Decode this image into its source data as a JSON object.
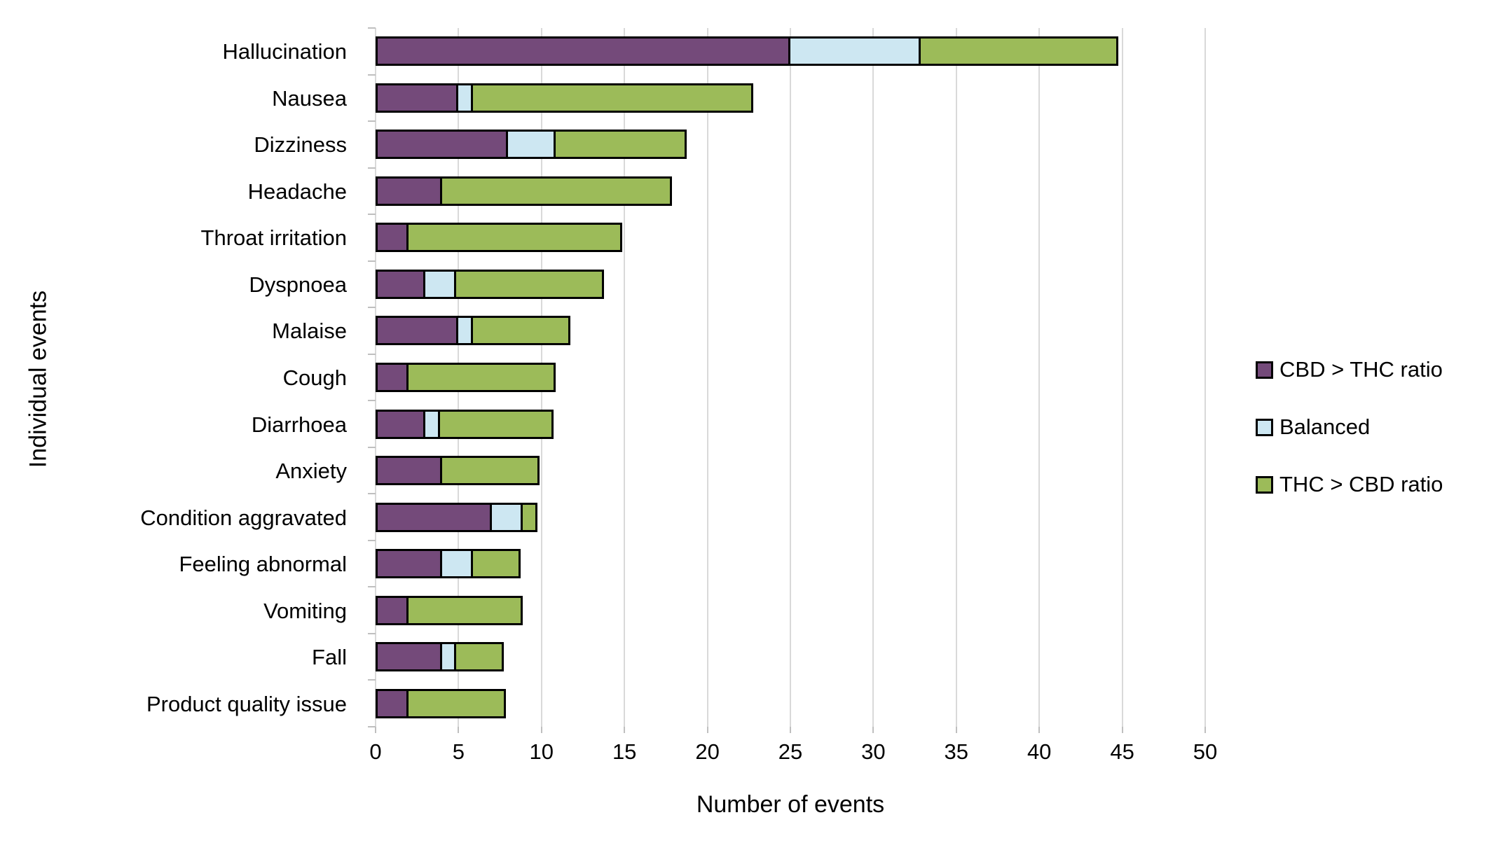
{
  "chart_data": {
    "type": "bar",
    "orientation": "horizontal",
    "stacked": true,
    "title": "",
    "xlabel": "Number of events",
    "ylabel": "Individual events",
    "xlim": [
      0,
      50
    ],
    "xticks": [
      0,
      5,
      10,
      15,
      20,
      25,
      30,
      35,
      40,
      45,
      50
    ],
    "grid": "vertical",
    "legend_position": "right",
    "categories": [
      "Hallucination",
      "Nausea",
      "Dizziness",
      "Headache",
      "Throat irritation",
      "Dyspnoea",
      "Malaise",
      "Cough",
      "Diarrhoea",
      "Anxiety",
      "Condition aggravated",
      "Feeling abnormal",
      "Vomiting",
      "Fall",
      "Product quality issue"
    ],
    "series": [
      {
        "name": "CBD > THC ratio",
        "color": "#744a7a",
        "values": [
          25,
          5,
          8,
          4,
          2,
          3,
          5,
          2,
          3,
          4,
          7,
          4,
          2,
          4,
          2
        ]
      },
      {
        "name": "Balanced",
        "color": "#cde7f2",
        "values": [
          8,
          1,
          3,
          0,
          0,
          2,
          1,
          0,
          1,
          0,
          2,
          2,
          0,
          1,
          0
        ]
      },
      {
        "name": "THC > CBD ratio",
        "color": "#9cbb59",
        "values": [
          12,
          17,
          8,
          14,
          13,
          9,
          6,
          9,
          7,
          6,
          1,
          3,
          7,
          3,
          6
        ]
      }
    ],
    "colors": {
      "gridline": "#d9d9d9",
      "bar_border": "#000000",
      "text": "#000000"
    }
  }
}
